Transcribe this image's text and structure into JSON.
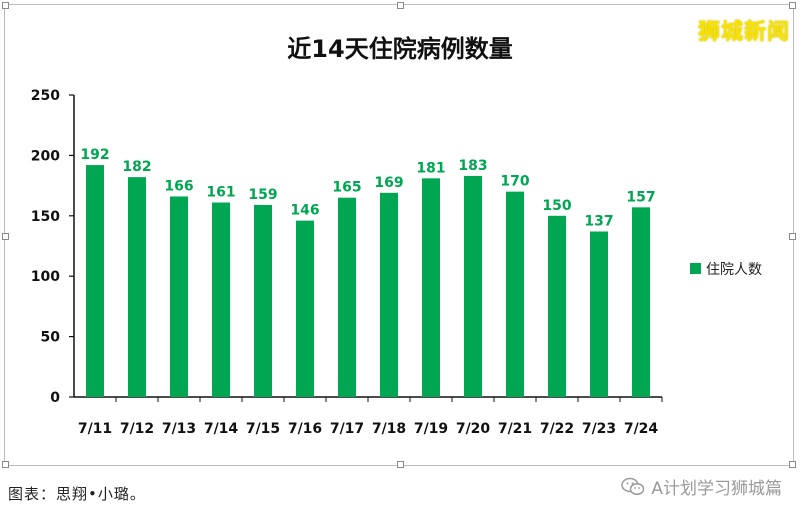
{
  "watermark": "狮城新闻",
  "caption": "图表：思翔•小璐。",
  "account": "A计划学习狮城篇",
  "colors": {
    "bar": "#00a651",
    "label": "#00a651",
    "axis": "#111111"
  },
  "chart_data": {
    "type": "bar",
    "title": "近14天住院病例数量",
    "categories": [
      "7/11",
      "7/12",
      "7/13",
      "7/14",
      "7/15",
      "7/16",
      "7/17",
      "7/18",
      "7/19",
      "7/20",
      "7/21",
      "7/22",
      "7/23",
      "7/24"
    ],
    "series": [
      {
        "name": "住院人数",
        "values": [
          192,
          182,
          166,
          161,
          159,
          146,
          165,
          169,
          181,
          183,
          170,
          150,
          137,
          157
        ]
      }
    ],
    "ylim": [
      0,
      250
    ],
    "yticks": [
      0,
      50,
      100,
      150,
      200,
      250
    ],
    "legend": "right",
    "grid": false
  }
}
